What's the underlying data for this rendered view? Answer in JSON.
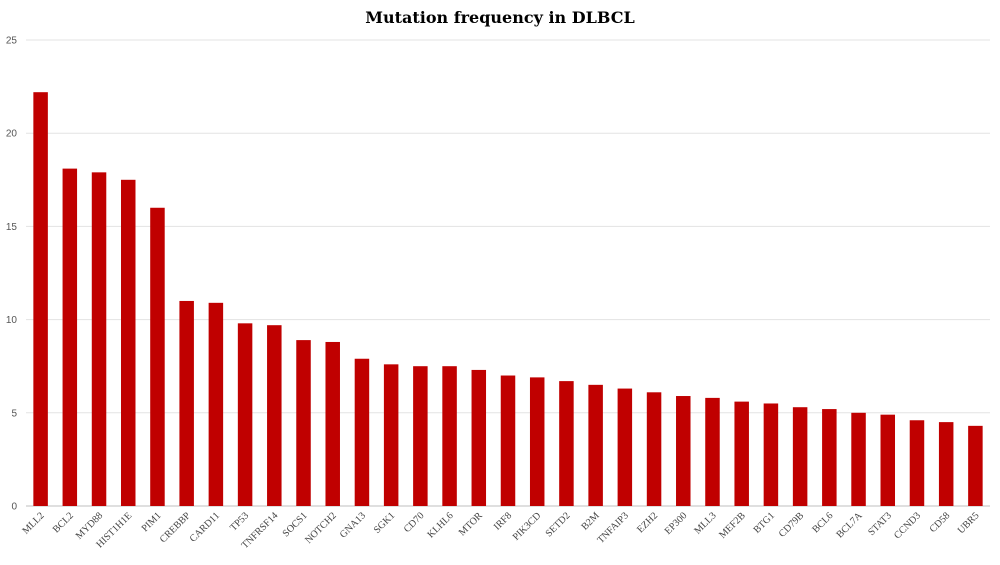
{
  "chart_data": {
    "type": "bar",
    "title": "Mutation frequency in DLBCL",
    "xlabel": "",
    "ylabel": "",
    "ylim": [
      0,
      25
    ],
    "yticks": [
      0,
      5,
      10,
      15,
      20,
      25
    ],
    "grid": true,
    "legend": "none",
    "bar_color": "#c00000",
    "categories": [
      "MLL2",
      "BCL2",
      "MYD88",
      "HIST1H1E",
      "PIM1",
      "CREBBP",
      "CARD11",
      "TP53",
      "TNFRSF14",
      "SOCS1",
      "NOTCH2",
      "GNA13",
      "SGK1",
      "CD70",
      "KLHL6",
      "MTOR",
      "IRF8",
      "PIK3CD",
      "SETD2",
      "B2M",
      "TNFAIP3",
      "EZH2",
      "EP300",
      "MLL3",
      "MEF2B",
      "BTG1",
      "CD79B",
      "BCL6",
      "BCL7A",
      "STAT3",
      "CCND3",
      "CD58",
      "UBR5"
    ],
    "values": [
      22.2,
      18.1,
      17.9,
      17.5,
      16.0,
      11.0,
      10.9,
      9.8,
      9.7,
      8.9,
      8.8,
      7.9,
      7.6,
      7.5,
      7.5,
      7.3,
      7.0,
      6.9,
      6.7,
      6.5,
      6.3,
      6.1,
      5.9,
      5.8,
      5.6,
      5.5,
      5.3,
      5.2,
      5.0,
      4.9,
      4.6,
      4.5,
      4.3
    ]
  }
}
